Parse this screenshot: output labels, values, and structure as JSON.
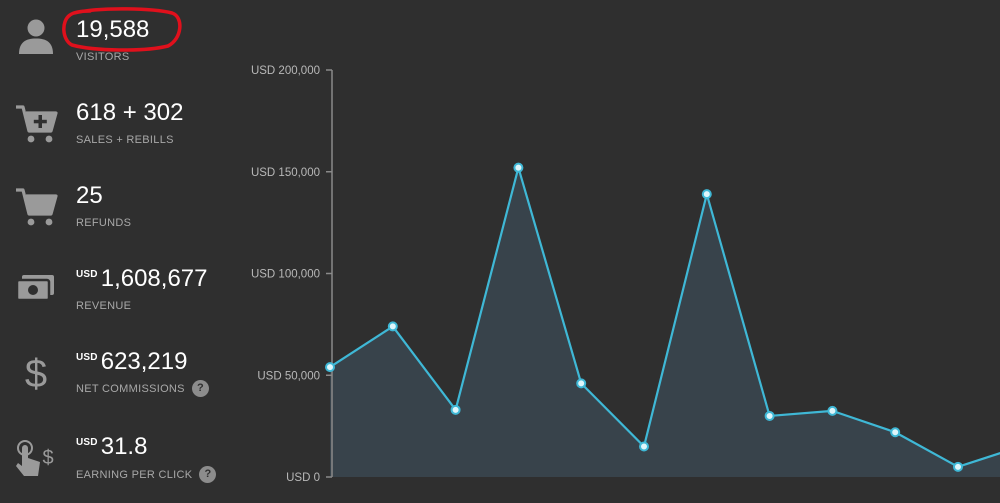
{
  "stats": {
    "visitors": {
      "value": "19,588",
      "label": "VISITORS",
      "icon": "person-icon"
    },
    "sales": {
      "value": "618 + 302",
      "label": "SALES + REBILLS",
      "icon": "cart-add-icon"
    },
    "refunds": {
      "value": "25",
      "label": "REFUNDS",
      "icon": "cart-icon"
    },
    "revenue": {
      "currency": "USD",
      "value": "1,608,677",
      "label": "REVENUE",
      "icon": "money-icon"
    },
    "net_commissions": {
      "currency": "USD",
      "value": "623,219",
      "label": "NET COMMISSIONS",
      "help": "?",
      "icon": "dollar-icon"
    },
    "earning_per_click": {
      "currency": "USD",
      "value": "31.8",
      "label": "EARNING PER CLICK",
      "help": "?",
      "icon": "touch-dollar-icon"
    }
  },
  "colors": {
    "background": "#2f2f2f",
    "line": "#3fb8d6",
    "area": "#3a4650",
    "highlight": "#e0101c",
    "icon": "#9a9a9a",
    "axis": "#8a8a8a"
  },
  "chart_data": {
    "type": "area",
    "y_tick_labels": [
      "USD 200,000",
      "USD 150,000",
      "USD 100,000",
      "USD 50,000",
      "USD 0"
    ],
    "y_ticks": [
      200000,
      150000,
      100000,
      50000,
      0
    ],
    "ylim": [
      0,
      200000
    ],
    "grid": false,
    "series": [
      {
        "values": [
          54000,
          74000,
          33000,
          152000,
          46000,
          15000,
          139000,
          30000,
          32500,
          22000,
          5000,
          15000
        ]
      }
    ]
  }
}
